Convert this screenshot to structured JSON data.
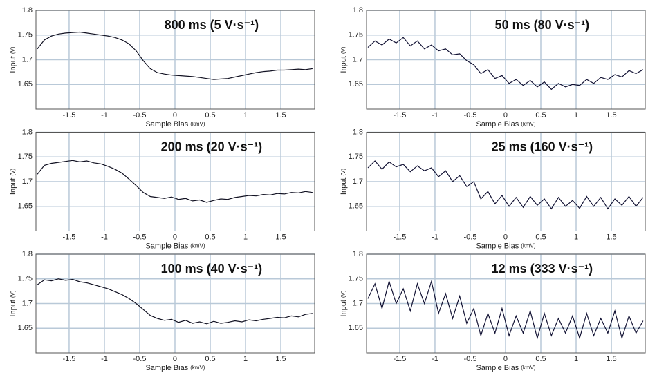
{
  "chart_data": [
    {
      "type": "line",
      "title": "800 ms (5 V·s⁻¹)",
      "xlabel": "Sample Bias",
      "xlabel_unit": "(kmV)",
      "ylabel": "Input",
      "ylabel_unit": "(V)",
      "x": [
        -1.95,
        -1.85,
        -1.75,
        -1.65,
        -1.55,
        -1.45,
        -1.35,
        -1.25,
        -1.15,
        -1.05,
        -0.95,
        -0.85,
        -0.75,
        -0.65,
        -0.55,
        -0.45,
        -0.35,
        -0.25,
        -0.15,
        -0.05,
        0.05,
        0.15,
        0.25,
        0.35,
        0.45,
        0.55,
        0.65,
        0.75,
        0.85,
        0.95,
        1.05,
        1.15,
        1.25,
        1.35,
        1.45,
        1.55,
        1.65,
        1.75,
        1.85,
        1.95
      ],
      "values": [
        1.722,
        1.74,
        1.748,
        1.752,
        1.754,
        1.755,
        1.756,
        1.754,
        1.752,
        1.75,
        1.748,
        1.745,
        1.74,
        1.732,
        1.718,
        1.698,
        1.682,
        1.674,
        1.671,
        1.669,
        1.668,
        1.667,
        1.666,
        1.664,
        1.662,
        1.66,
        1.661,
        1.662,
        1.665,
        1.668,
        1.671,
        1.674,
        1.676,
        1.677,
        1.679,
        1.679,
        1.68,
        1.681,
        1.68,
        1.682
      ],
      "color": "#111122",
      "xlim": [
        -1.97,
        1.98
      ],
      "ylim": [
        1.6,
        1.8
      ],
      "xticks": [
        -1.5,
        -1,
        -0.5,
        0,
        0.5,
        1,
        1.5
      ],
      "yticks": [
        1.65,
        1.7,
        1.75,
        1.8
      ],
      "grid": true
    },
    {
      "type": "line",
      "title": "50 ms (80 V·s⁻¹)",
      "xlabel": "Sample Bias",
      "xlabel_unit": "(kmV)",
      "ylabel": "Input",
      "ylabel_unit": "(V)",
      "x": [
        -1.95,
        -1.85,
        -1.75,
        -1.65,
        -1.55,
        -1.45,
        -1.35,
        -1.25,
        -1.15,
        -1.05,
        -0.95,
        -0.85,
        -0.75,
        -0.65,
        -0.55,
        -0.45,
        -0.35,
        -0.25,
        -0.15,
        -0.05,
        0.05,
        0.15,
        0.25,
        0.35,
        0.45,
        0.55,
        0.65,
        0.75,
        0.85,
        0.95,
        1.05,
        1.15,
        1.25,
        1.35,
        1.45,
        1.55,
        1.65,
        1.75,
        1.85,
        1.95
      ],
      "values": [
        1.725,
        1.738,
        1.73,
        1.742,
        1.734,
        1.745,
        1.728,
        1.738,
        1.722,
        1.73,
        1.718,
        1.722,
        1.71,
        1.712,
        1.698,
        1.69,
        1.672,
        1.68,
        1.662,
        1.668,
        1.652,
        1.66,
        1.648,
        1.658,
        1.645,
        1.655,
        1.64,
        1.652,
        1.645,
        1.65,
        1.648,
        1.66,
        1.652,
        1.664,
        1.66,
        1.67,
        1.665,
        1.678,
        1.672,
        1.68
      ],
      "color": "#111133",
      "xlim": [
        -1.97,
        1.98
      ],
      "ylim": [
        1.6,
        1.8
      ],
      "xticks": [
        -1.5,
        -1,
        -0.5,
        0,
        0.5,
        1,
        1.5
      ],
      "yticks": [
        1.65,
        1.7,
        1.75,
        1.8
      ],
      "grid": true
    },
    {
      "type": "line",
      "title": "200 ms (20 V·s⁻¹)",
      "xlabel": "Sample Bias",
      "xlabel_unit": "(kmV)",
      "ylabel": "Input",
      "ylabel_unit": "(V)",
      "x": [
        -1.95,
        -1.85,
        -1.75,
        -1.65,
        -1.55,
        -1.45,
        -1.35,
        -1.25,
        -1.15,
        -1.05,
        -0.95,
        -0.85,
        -0.75,
        -0.65,
        -0.55,
        -0.45,
        -0.35,
        -0.25,
        -0.15,
        -0.05,
        0.05,
        0.15,
        0.25,
        0.35,
        0.45,
        0.55,
        0.65,
        0.75,
        0.85,
        0.95,
        1.05,
        1.15,
        1.25,
        1.35,
        1.45,
        1.55,
        1.65,
        1.75,
        1.85,
        1.95
      ],
      "values": [
        1.715,
        1.733,
        1.737,
        1.739,
        1.741,
        1.743,
        1.74,
        1.742,
        1.738,
        1.736,
        1.731,
        1.725,
        1.717,
        1.705,
        1.692,
        1.678,
        1.67,
        1.668,
        1.666,
        1.669,
        1.664,
        1.666,
        1.661,
        1.663,
        1.658,
        1.662,
        1.665,
        1.664,
        1.668,
        1.67,
        1.672,
        1.671,
        1.674,
        1.673,
        1.676,
        1.675,
        1.678,
        1.677,
        1.68,
        1.678
      ],
      "color": "#111122",
      "xlim": [
        -1.97,
        1.98
      ],
      "ylim": [
        1.6,
        1.8
      ],
      "xticks": [
        -1.5,
        -1,
        -0.5,
        0,
        0.5,
        1,
        1.5
      ],
      "yticks": [
        1.65,
        1.7,
        1.75,
        1.8
      ],
      "grid": true
    },
    {
      "type": "line",
      "title": "25 ms (160 V·s⁻¹)",
      "xlabel": "Sample Bias",
      "xlabel_unit": "(kmV)",
      "ylabel": "Input",
      "ylabel_unit": "(V)",
      "x": [
        -1.95,
        -1.85,
        -1.75,
        -1.65,
        -1.55,
        -1.45,
        -1.35,
        -1.25,
        -1.15,
        -1.05,
        -0.95,
        -0.85,
        -0.75,
        -0.65,
        -0.55,
        -0.45,
        -0.35,
        -0.25,
        -0.15,
        -0.05,
        0.05,
        0.15,
        0.25,
        0.35,
        0.45,
        0.55,
        0.65,
        0.75,
        0.85,
        0.95,
        1.05,
        1.15,
        1.25,
        1.35,
        1.45,
        1.55,
        1.65,
        1.75,
        1.85,
        1.95
      ],
      "values": [
        1.728,
        1.742,
        1.725,
        1.74,
        1.73,
        1.735,
        1.72,
        1.732,
        1.722,
        1.728,
        1.71,
        1.722,
        1.7,
        1.712,
        1.69,
        1.7,
        1.665,
        1.68,
        1.655,
        1.672,
        1.65,
        1.668,
        1.648,
        1.67,
        1.652,
        1.665,
        1.645,
        1.668,
        1.65,
        1.662,
        1.646,
        1.67,
        1.65,
        1.668,
        1.645,
        1.665,
        1.652,
        1.67,
        1.65,
        1.668
      ],
      "color": "#111133",
      "xlim": [
        -1.97,
        1.98
      ],
      "ylim": [
        1.6,
        1.8
      ],
      "xticks": [
        -1.5,
        -1,
        -0.5,
        0,
        0.5,
        1,
        1.5
      ],
      "yticks": [
        1.65,
        1.7,
        1.75,
        1.8
      ],
      "grid": true
    },
    {
      "type": "line",
      "title": "100 ms (40 V·s⁻¹)",
      "xlabel": "Sample Bias",
      "xlabel_unit": "(kmV)",
      "ylabel": "Input",
      "ylabel_unit": "(V)",
      "x": [
        -1.95,
        -1.85,
        -1.75,
        -1.65,
        -1.55,
        -1.45,
        -1.35,
        -1.25,
        -1.15,
        -1.05,
        -0.95,
        -0.85,
        -0.75,
        -0.65,
        -0.55,
        -0.45,
        -0.35,
        -0.25,
        -0.15,
        -0.05,
        0.05,
        0.15,
        0.25,
        0.35,
        0.45,
        0.55,
        0.65,
        0.75,
        0.85,
        0.95,
        1.05,
        1.15,
        1.25,
        1.35,
        1.45,
        1.55,
        1.65,
        1.75,
        1.85,
        1.95
      ],
      "values": [
        1.738,
        1.748,
        1.746,
        1.75,
        1.747,
        1.749,
        1.744,
        1.742,
        1.738,
        1.734,
        1.73,
        1.724,
        1.718,
        1.71,
        1.7,
        1.688,
        1.676,
        1.67,
        1.666,
        1.668,
        1.662,
        1.666,
        1.66,
        1.663,
        1.659,
        1.664,
        1.66,
        1.662,
        1.665,
        1.663,
        1.667,
        1.665,
        1.668,
        1.67,
        1.672,
        1.671,
        1.675,
        1.673,
        1.678,
        1.68
      ],
      "color": "#111122",
      "xlim": [
        -1.97,
        1.98
      ],
      "ylim": [
        1.6,
        1.8
      ],
      "xticks": [
        -1.5,
        -1,
        -0.5,
        0,
        0.5,
        1,
        1.5
      ],
      "yticks": [
        1.65,
        1.7,
        1.75,
        1.8
      ],
      "grid": true
    },
    {
      "type": "line",
      "title": "12 ms (333 V·s⁻¹)",
      "xlabel": "Sample Bias",
      "xlabel_unit": "(kmV)",
      "ylabel": "Input",
      "ylabel_unit": "(V)",
      "x": [
        -1.95,
        -1.85,
        -1.75,
        -1.65,
        -1.55,
        -1.45,
        -1.35,
        -1.25,
        -1.15,
        -1.05,
        -0.95,
        -0.85,
        -0.75,
        -0.65,
        -0.55,
        -0.45,
        -0.35,
        -0.25,
        -0.15,
        -0.05,
        0.05,
        0.15,
        0.25,
        0.35,
        0.45,
        0.55,
        0.65,
        0.75,
        0.85,
        0.95,
        1.05,
        1.15,
        1.25,
        1.35,
        1.45,
        1.55,
        1.65,
        1.75,
        1.85,
        1.95
      ],
      "values": [
        1.71,
        1.74,
        1.69,
        1.745,
        1.7,
        1.73,
        1.685,
        1.74,
        1.7,
        1.745,
        1.68,
        1.72,
        1.67,
        1.715,
        1.66,
        1.69,
        1.635,
        1.68,
        1.64,
        1.69,
        1.635,
        1.675,
        1.64,
        1.685,
        1.63,
        1.68,
        1.635,
        1.67,
        1.64,
        1.675,
        1.63,
        1.68,
        1.635,
        1.67,
        1.64,
        1.685,
        1.63,
        1.675,
        1.64,
        1.665
      ],
      "color": "#111133",
      "xlim": [
        -1.97,
        1.98
      ],
      "ylim": [
        1.6,
        1.8
      ],
      "xticks": [
        -1.5,
        -1,
        -0.5,
        0,
        0.5,
        1,
        1.5
      ],
      "yticks": [
        1.65,
        1.7,
        1.75,
        1.8
      ],
      "grid": true
    }
  ]
}
